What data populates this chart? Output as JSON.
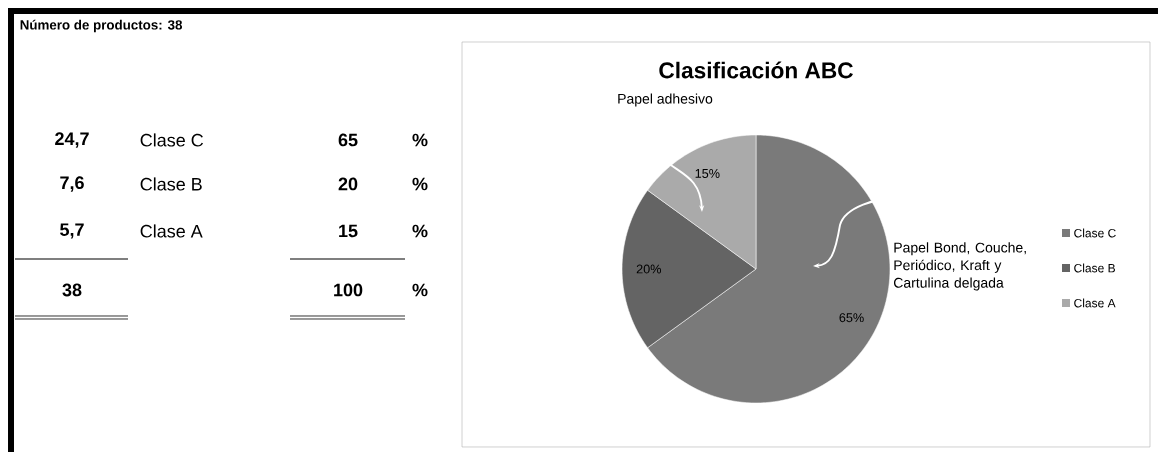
{
  "chart_data": [
    {
      "type": "other",
      "title": "Número de productos: 38",
      "annotations": [
        "24,7",
        "Clase C",
        "65",
        "%",
        "7,6",
        "Clase B",
        "20",
        "%",
        "5,7",
        "Clase A",
        "15",
        "%",
        "38",
        "100",
        "%"
      ]
    },
    {
      "type": "pie",
      "title": "Clasificación ABC",
      "categories": [
        "Clase C",
        "Clase B",
        "Clase A"
      ],
      "values": [
        65,
        20,
        15
      ],
      "colors": [
        "#7a7a7a",
        "#646464",
        "#aaaaaa"
      ],
      "value_labels": [
        "65%",
        "20%",
        "15%"
      ],
      "legend": "right",
      "annotations": [
        "Papel adhesivo",
        "Papel Bond, Couche, Periódico, Kraft y Cartulina delgada"
      ]
    }
  ]
}
